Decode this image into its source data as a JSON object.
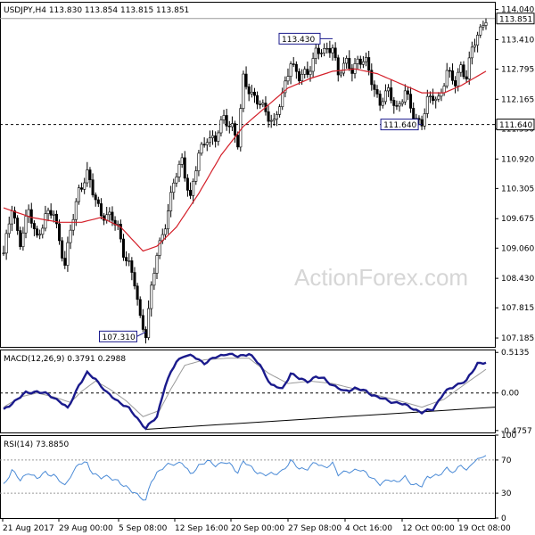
{
  "chart_data": [
    {
      "type": "candlestick",
      "title": "USDJPY,H4  113.830 113.854 113.815 113.851",
      "watermark": "ActionForex.com",
      "ylim": [
        107.0,
        114.2
      ],
      "y_ticks": [
        "114.040",
        "113.410",
        "112.795",
        "112.165",
        "111.550",
        "110.920",
        "110.305",
        "109.675",
        "109.060",
        "108.430",
        "107.815",
        "107.185"
      ],
      "last_price": "113.851",
      "support_line": {
        "value": 111.64,
        "label": "111.640"
      },
      "callouts": [
        {
          "label": "113.430",
          "value": 113.43
        },
        {
          "label": "111.640",
          "value": 111.64
        },
        {
          "label": "107.310",
          "value": 107.31
        }
      ],
      "price_anchors": [
        [
          0,
          108.9
        ],
        [
          3,
          109.9
        ],
        [
          6,
          109.2
        ],
        [
          9,
          109.8
        ],
        [
          12,
          109.3
        ],
        [
          15,
          109.7
        ],
        [
          18,
          109.8
        ],
        [
          22,
          108.7
        ],
        [
          24,
          109.4
        ],
        [
          27,
          110.3
        ],
        [
          30,
          110.6
        ],
        [
          32,
          110.2
        ],
        [
          35,
          109.8
        ],
        [
          38,
          109.7
        ],
        [
          41,
          109.5
        ],
        [
          43,
          109.0
        ],
        [
          45,
          108.7
        ],
        [
          47,
          108.3
        ],
        [
          49,
          107.6
        ],
        [
          51,
          107.31
        ],
        [
          53,
          108.2
        ],
        [
          55,
          108.9
        ],
        [
          58,
          109.6
        ],
        [
          61,
          110.4
        ],
        [
          64,
          110.9
        ],
        [
          67,
          110.1
        ],
        [
          70,
          111.0
        ],
        [
          73,
          111.4
        ],
        [
          76,
          111.3
        ],
        [
          79,
          111.8
        ],
        [
          82,
          111.6
        ],
        [
          84,
          111.2
        ],
        [
          86,
          112.6
        ],
        [
          88,
          112.4
        ],
        [
          91,
          112.1
        ],
        [
          94,
          111.9
        ],
        [
          97,
          111.7
        ],
        [
          100,
          112.2
        ],
        [
          103,
          113.0
        ],
        [
          106,
          112.6
        ],
        [
          109,
          112.7
        ],
        [
          112,
          113.2
        ],
        [
          115,
          113.1
        ],
        [
          118,
          113.3
        ],
        [
          120,
          112.7
        ],
        [
          123,
          112.9
        ],
        [
          125,
          112.8
        ],
        [
          127,
          113.0
        ],
        [
          130,
          112.9
        ],
        [
          133,
          112.4
        ],
        [
          135,
          112.1
        ],
        [
          138,
          112.3
        ],
        [
          141,
          112.0
        ],
        [
          144,
          112.3
        ],
        [
          147,
          111.8
        ],
        [
          150,
          111.7
        ],
        [
          152,
          112.1
        ],
        [
          154,
          112.2
        ],
        [
          156,
          112.2
        ],
        [
          159,
          112.7
        ],
        [
          162,
          112.5
        ],
        [
          164,
          112.9
        ],
        [
          166,
          112.6
        ],
        [
          168,
          113.2
        ],
        [
          170,
          113.5
        ],
        [
          172,
          113.8
        ],
        [
          173,
          113.85
        ]
      ],
      "ma_anchors": [
        [
          0,
          109.9
        ],
        [
          10,
          109.7
        ],
        [
          20,
          109.6
        ],
        [
          28,
          109.6
        ],
        [
          35,
          109.7
        ],
        [
          42,
          109.5
        ],
        [
          50,
          109.0
        ],
        [
          55,
          109.1
        ],
        [
          62,
          109.5
        ],
        [
          70,
          110.2
        ],
        [
          78,
          111.0
        ],
        [
          86,
          111.6
        ],
        [
          94,
          112.0
        ],
        [
          102,
          112.4
        ],
        [
          110,
          112.6
        ],
        [
          118,
          112.75
        ],
        [
          126,
          112.8
        ],
        [
          134,
          112.7
        ],
        [
          142,
          112.5
        ],
        [
          150,
          112.3
        ],
        [
          158,
          112.3
        ],
        [
          164,
          112.45
        ],
        [
          173,
          112.75
        ]
      ]
    },
    {
      "type": "line",
      "title": "MACD(12,26,9) 0.3791 0.2988",
      "ylim": [
        -0.5,
        0.55
      ],
      "y_ticks": [
        "0.5135",
        "0.00",
        "-0.4757"
      ],
      "zero": 0,
      "macd_anchors": [
        [
          0,
          -0.22
        ],
        [
          4,
          -0.1
        ],
        [
          8,
          0.0
        ],
        [
          12,
          0.02
        ],
        [
          16,
          -0.02
        ],
        [
          20,
          -0.1
        ],
        [
          23,
          -0.2
        ],
        [
          27,
          0.1
        ],
        [
          30,
          0.25
        ],
        [
          33,
          0.18
        ],
        [
          37,
          0.0
        ],
        [
          41,
          -0.1
        ],
        [
          45,
          -0.2
        ],
        [
          48,
          -0.32
        ],
        [
          51,
          -0.45
        ],
        [
          55,
          -0.3
        ],
        [
          58,
          0.1
        ],
        [
          62,
          0.4
        ],
        [
          65,
          0.48
        ],
        [
          68,
          0.46
        ],
        [
          72,
          0.38
        ],
        [
          76,
          0.45
        ],
        [
          80,
          0.5
        ],
        [
          84,
          0.46
        ],
        [
          88,
          0.5
        ],
        [
          92,
          0.35
        ],
        [
          96,
          0.1
        ],
        [
          100,
          0.05
        ],
        [
          103,
          0.25
        ],
        [
          106,
          0.18
        ],
        [
          109,
          0.15
        ],
        [
          112,
          0.2
        ],
        [
          115,
          0.18
        ],
        [
          118,
          0.1
        ],
        [
          122,
          0.02
        ],
        [
          126,
          0.06
        ],
        [
          130,
          0.02
        ],
        [
          134,
          -0.05
        ],
        [
          138,
          -0.1
        ],
        [
          142,
          -0.13
        ],
        [
          146,
          -0.18
        ],
        [
          150,
          -0.25
        ],
        [
          154,
          -0.2
        ],
        [
          158,
          0.0
        ],
        [
          162,
          0.1
        ],
        [
          166,
          0.15
        ],
        [
          170,
          0.38
        ],
        [
          173,
          0.38
        ]
      ],
      "signal_anchors": [
        [
          0,
          -0.18
        ],
        [
          6,
          -0.05
        ],
        [
          12,
          0.0
        ],
        [
          18,
          -0.05
        ],
        [
          24,
          -0.12
        ],
        [
          28,
          0.02
        ],
        [
          33,
          0.15
        ],
        [
          38,
          0.05
        ],
        [
          44,
          -0.1
        ],
        [
          50,
          -0.3
        ],
        [
          56,
          -0.22
        ],
        [
          60,
          0.05
        ],
        [
          65,
          0.35
        ],
        [
          72,
          0.42
        ],
        [
          80,
          0.44
        ],
        [
          88,
          0.44
        ],
        [
          95,
          0.25
        ],
        [
          102,
          0.12
        ],
        [
          110,
          0.15
        ],
        [
          118,
          0.12
        ],
        [
          126,
          0.05
        ],
        [
          134,
          -0.03
        ],
        [
          142,
          -0.1
        ],
        [
          150,
          -0.18
        ],
        [
          158,
          -0.08
        ],
        [
          165,
          0.1
        ],
        [
          173,
          0.3
        ]
      ],
      "trendline": [
        [
          51,
          -0.46
        ],
        [
          173,
          -0.18
        ]
      ]
    },
    {
      "type": "line",
      "title": "RSI(14) 73.8850",
      "ylim": [
        0,
        100
      ],
      "y_ticks": [
        "100",
        "70",
        "30",
        "0"
      ],
      "levels": [
        70,
        30
      ],
      "rsi_anchors": [
        [
          0,
          40
        ],
        [
          3,
          58
        ],
        [
          6,
          45
        ],
        [
          9,
          56
        ],
        [
          12,
          47
        ],
        [
          15,
          55
        ],
        [
          18,
          52
        ],
        [
          22,
          38
        ],
        [
          24,
          52
        ],
        [
          27,
          65
        ],
        [
          30,
          66
        ],
        [
          32,
          55
        ],
        [
          35,
          48
        ],
        [
          38,
          50
        ],
        [
          41,
          45
        ],
        [
          43,
          38
        ],
        [
          45,
          35
        ],
        [
          47,
          32
        ],
        [
          49,
          25
        ],
        [
          51,
          20
        ],
        [
          53,
          45
        ],
        [
          55,
          55
        ],
        [
          58,
          62
        ],
        [
          61,
          66
        ],
        [
          64,
          67
        ],
        [
          67,
          52
        ],
        [
          70,
          64
        ],
        [
          73,
          68
        ],
        [
          76,
          64
        ],
        [
          79,
          68
        ],
        [
          82,
          62
        ],
        [
          84,
          55
        ],
        [
          86,
          70
        ],
        [
          88,
          62
        ],
        [
          91,
          55
        ],
        [
          94,
          53
        ],
        [
          97,
          52
        ],
        [
          100,
          58
        ],
        [
          103,
          68
        ],
        [
          106,
          60
        ],
        [
          109,
          60
        ],
        [
          112,
          66
        ],
        [
          115,
          62
        ],
        [
          118,
          65
        ],
        [
          120,
          52
        ],
        [
          123,
          58
        ],
        [
          125,
          55
        ],
        [
          127,
          58
        ],
        [
          130,
          56
        ],
        [
          133,
          45
        ],
        [
          135,
          40
        ],
        [
          138,
          48
        ],
        [
          141,
          42
        ],
        [
          144,
          50
        ],
        [
          147,
          40
        ],
        [
          150,
          38
        ],
        [
          152,
          50
        ],
        [
          154,
          52
        ],
        [
          156,
          50
        ],
        [
          159,
          60
        ],
        [
          162,
          56
        ],
        [
          164,
          64
        ],
        [
          166,
          56
        ],
        [
          168,
          68
        ],
        [
          170,
          70
        ],
        [
          172,
          74
        ],
        [
          173,
          73.9
        ]
      ]
    }
  ],
  "x_labels": [
    "21 Aug 2017",
    "29 Aug 00:00",
    "5 Sep 08:00",
    "12 Sep 16:00",
    "20 Sep 00:00",
    "27 Sep 08:00",
    "4 Oct 16:00",
    "12 Oct 00:00",
    "19 Oct 08:00"
  ]
}
